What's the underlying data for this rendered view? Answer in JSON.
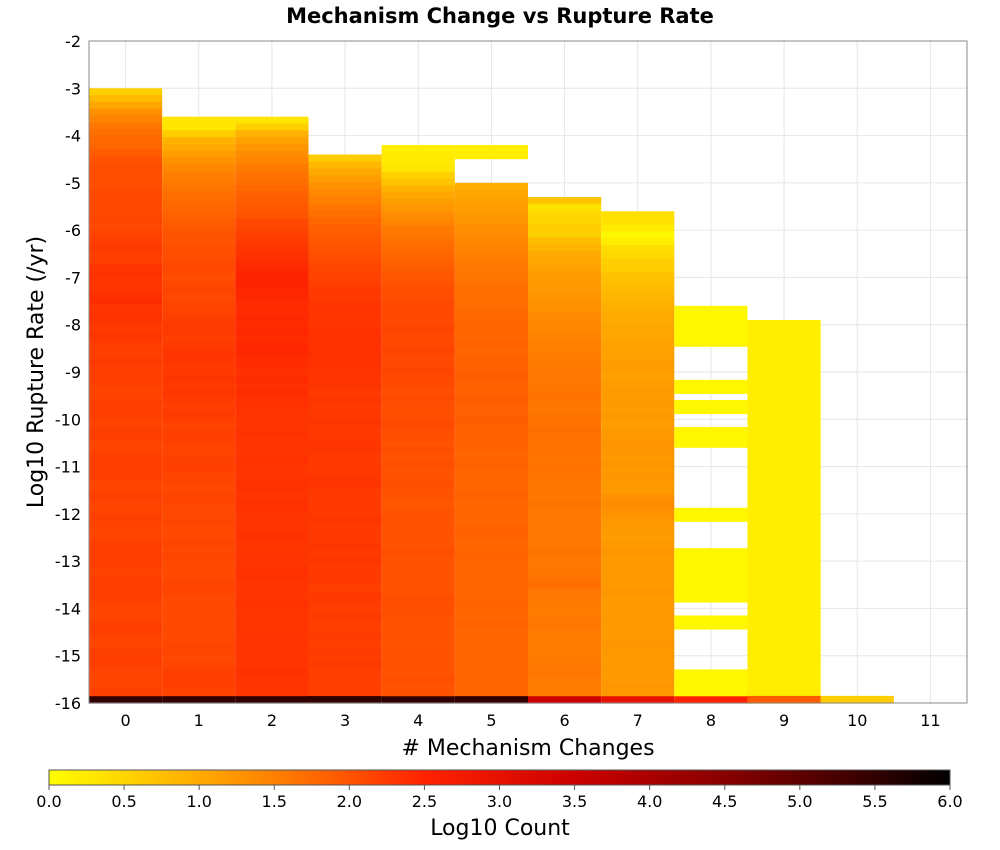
{
  "chart_data": {
    "type": "heatmap",
    "title": "Mechanism Change vs Rupture Rate",
    "xlabel": "# Mechanism Changes",
    "ylabel": "Log10 Rupture Rate (/yr)",
    "xlim": [
      -0.5,
      11.5
    ],
    "ylim": [
      -16,
      -2
    ],
    "x_ticks": [
      "0",
      "1",
      "2",
      "3",
      "4",
      "5",
      "6",
      "7",
      "8",
      "9",
      "10",
      "11"
    ],
    "y_ticks": [
      "-2",
      "-3",
      "-4",
      "-5",
      "-6",
      "-7",
      "-8",
      "-9",
      "-10",
      "-11",
      "-12",
      "-13",
      "-14",
      "-15",
      "-16"
    ],
    "bin_height": 0.2857,
    "grid": true,
    "colorscale": {
      "label": "Log10 Count",
      "min": 0.0,
      "max": 6.0,
      "ticks": [
        "0.0",
        "0.5",
        "1.0",
        "1.5",
        "2.0",
        "2.5",
        "3.0",
        "3.5",
        "4.0",
        "4.5",
        "5.0",
        "5.5",
        "6.0"
      ],
      "stops": [
        "#ffff00",
        "#ff9900",
        "#ff6600",
        "#ff2200",
        "#cc0000",
        "#880000",
        "#440000",
        "#000000"
      ]
    },
    "columns": [
      {
        "x": 0,
        "y_top": -3.0,
        "y_bottom": -16.0,
        "values": [
          0.55,
          0.8,
          1.05,
          1.3,
          1.45,
          1.6,
          1.7,
          1.75,
          1.8,
          1.9,
          2.0,
          2.05,
          2.05,
          2.05,
          2.05,
          2.1,
          2.1,
          2.1,
          2.1,
          2.15,
          2.1,
          2.15,
          2.2,
          2.25,
          2.2,
          2.2,
          2.3,
          2.35,
          2.3,
          2.3,
          2.35,
          2.4,
          2.3,
          2.35,
          2.3,
          2.25,
          2.3,
          2.25,
          2.2,
          2.2,
          2.25,
          2.2,
          2.2,
          2.2,
          2.15,
          2.15,
          2.2,
          2.2,
          2.2,
          2.15,
          2.2,
          2.2,
          2.15,
          2.15,
          2.2,
          2.2,
          2.2,
          2.2,
          2.15,
          2.15,
          2.2,
          2.15,
          2.15,
          2.2,
          2.15,
          2.15,
          2.15,
          2.2,
          2.2,
          2.2,
          2.2,
          2.15,
          2.2,
          2.2,
          2.2,
          2.2,
          2.15,
          2.15,
          2.15,
          2.2,
          2.2,
          2.15,
          2.15,
          2.2,
          2.2,
          2.2,
          2.15,
          2.15,
          2.15,
          2.2,
          5.5
        ]
      },
      {
        "x": 1,
        "y_top": -3.6,
        "y_bottom": -16.0,
        "values": [
          0.3,
          0.3,
          0.6,
          0.9,
          1.0,
          1.15,
          1.3,
          1.4,
          1.5,
          1.55,
          1.65,
          1.7,
          1.75,
          1.8,
          1.85,
          1.9,
          1.95,
          2.0,
          2.0,
          2.05,
          2.05,
          2.1,
          2.1,
          2.05,
          2.1,
          2.15,
          2.1,
          2.15,
          2.15,
          2.2,
          2.25,
          2.25,
          2.2,
          2.25,
          2.3,
          2.3,
          2.25,
          2.25,
          2.3,
          2.25,
          2.3,
          2.25,
          2.2,
          2.25,
          2.2,
          2.15,
          2.2,
          2.2,
          2.15,
          2.15,
          2.2,
          2.2,
          2.15,
          2.15,
          2.1,
          2.15,
          2.15,
          2.1,
          2.1,
          2.15,
          2.1,
          2.1,
          2.15,
          2.1,
          2.15,
          2.1,
          2.1,
          2.1,
          2.15,
          2.15,
          2.1,
          2.1,
          2.1,
          2.1,
          2.1,
          2.1,
          2.1,
          2.15,
          2.15,
          2.1,
          2.15,
          2.2,
          2.2,
          2.2,
          2.15,
          5.5
        ]
      },
      {
        "x": 2,
        "y_top": -3.6,
        "y_bottom": -16.0,
        "values": [
          0.3,
          0.55,
          0.9,
          1.1,
          1.25,
          1.35,
          1.45,
          1.55,
          1.65,
          1.7,
          1.8,
          1.85,
          1.9,
          1.95,
          2.0,
          2.1,
          2.15,
          2.2,
          2.25,
          2.3,
          2.35,
          2.4,
          2.45,
          2.5,
          2.5,
          2.45,
          2.45,
          2.4,
          2.4,
          2.45,
          2.4,
          2.45,
          2.4,
          2.45,
          2.45,
          2.4,
          2.4,
          2.35,
          2.4,
          2.35,
          2.4,
          2.35,
          2.35,
          2.3,
          2.3,
          2.3,
          2.35,
          2.3,
          2.3,
          2.3,
          2.35,
          2.3,
          2.3,
          2.35,
          2.35,
          2.3,
          2.35,
          2.35,
          2.3,
          2.3,
          2.3,
          2.35,
          2.3,
          2.3,
          2.3,
          2.3,
          2.35,
          2.35,
          2.3,
          2.3,
          2.3,
          2.35,
          2.3,
          2.3,
          2.3,
          2.3,
          2.3,
          2.3,
          2.3,
          2.3,
          2.3,
          2.35,
          2.3,
          2.3,
          2.3,
          5.5
        ]
      },
      {
        "x": 3,
        "y_top": -4.4,
        "y_bottom": -16.0,
        "values": [
          0.6,
          0.85,
          1.0,
          1.15,
          1.3,
          1.4,
          1.5,
          1.6,
          1.7,
          1.8,
          1.85,
          1.9,
          1.95,
          2.0,
          2.05,
          2.1,
          2.15,
          2.15,
          2.2,
          2.25,
          2.25,
          2.3,
          2.3,
          2.3,
          2.3,
          2.35,
          2.35,
          2.35,
          2.35,
          2.35,
          2.35,
          2.3,
          2.3,
          2.3,
          2.25,
          2.3,
          2.25,
          2.25,
          2.3,
          2.25,
          2.25,
          2.3,
          2.3,
          2.25,
          2.25,
          2.25,
          2.3,
          2.3,
          2.25,
          2.25,
          2.25,
          2.25,
          2.3,
          2.25,
          2.25,
          2.25,
          2.3,
          2.25,
          2.3,
          2.25,
          2.25,
          2.25,
          2.2,
          2.25,
          2.25,
          2.2,
          2.25,
          2.2,
          2.2,
          2.25,
          2.2,
          2.25,
          2.2,
          2.25,
          2.2,
          2.2,
          2.2,
          2.2,
          5.5
        ]
      },
      {
        "x": 4,
        "y_top": -4.2,
        "y_bottom": -16.0,
        "values": [
          0.2,
          0.25,
          0.25,
          0.3,
          0.55,
          0.7,
          0.9,
          1.05,
          1.15,
          1.25,
          1.35,
          1.45,
          1.55,
          1.6,
          1.7,
          1.75,
          1.8,
          1.85,
          1.9,
          1.95,
          2.0,
          2.05,
          2.05,
          2.1,
          2.1,
          2.1,
          2.1,
          2.15,
          2.1,
          2.1,
          2.15,
          2.1,
          2.1,
          2.15,
          2.1,
          2.1,
          2.05,
          2.1,
          2.05,
          2.05,
          2.05,
          2.1,
          2.05,
          2.05,
          2.0,
          2.05,
          2.0,
          2.05,
          2.0,
          2.0,
          2.05,
          2.0,
          2.0,
          1.95,
          2.0,
          2.0,
          2.0,
          2.0,
          2.0,
          2.0,
          2.05,
          2.0,
          2.0,
          2.0,
          2.0,
          2.0,
          2.0,
          2.05,
          2.05,
          2.05,
          2.0,
          2.0,
          2.0,
          2.0,
          2.0,
          2.0,
          2.0,
          2.0,
          2.0,
          2.05,
          2.0,
          2.0,
          5.5
        ]
      },
      {
        "x": 5,
        "y_top": -5.0,
        "y_bottom": -16.0,
        "values": [
          0.95,
          1.05,
          1.1,
          1.15,
          1.2,
          1.25,
          1.3,
          1.35,
          1.4,
          1.45,
          1.5,
          1.55,
          1.6,
          1.6,
          1.65,
          1.7,
          1.7,
          1.7,
          1.75,
          1.75,
          1.8,
          1.8,
          1.8,
          1.85,
          1.8,
          1.85,
          1.85,
          1.85,
          1.9,
          1.85,
          1.85,
          1.9,
          1.85,
          1.85,
          1.9,
          1.85,
          1.85,
          1.85,
          1.85,
          1.8,
          1.85,
          1.85,
          1.8,
          1.8,
          1.8,
          1.85,
          1.8,
          1.8,
          1.8,
          1.8,
          1.85,
          1.85,
          1.8,
          1.8,
          1.85,
          1.8,
          1.8,
          1.8,
          1.8,
          1.8,
          1.8,
          1.85,
          1.8,
          1.8,
          1.85,
          1.8,
          1.8,
          1.8,
          1.8,
          1.8,
          1.8,
          1.8,
          1.8,
          1.8,
          1.8,
          5.5
        ]
      },
      {
        "x": 6,
        "y_top": -5.3,
        "y_bottom": -16.0,
        "values": [
          0.7,
          0.35,
          0.45,
          0.5,
          0.6,
          0.55,
          0.8,
          0.9,
          1.0,
          1.05,
          1.1,
          1.15,
          1.2,
          1.2,
          1.25,
          1.3,
          1.3,
          1.35,
          1.4,
          1.4,
          1.45,
          1.5,
          1.5,
          1.55,
          1.55,
          1.6,
          1.6,
          1.6,
          1.65,
          1.65,
          1.65,
          1.6,
          1.65,
          1.65,
          1.7,
          1.65,
          1.65,
          1.65,
          1.65,
          1.65,
          1.65,
          1.65,
          1.6,
          1.65,
          1.6,
          1.65,
          1.6,
          1.6,
          1.6,
          1.6,
          1.6,
          1.6,
          1.65,
          1.6,
          1.6,
          1.6,
          1.65,
          1.7,
          1.6,
          1.6,
          1.55,
          1.55,
          1.6,
          1.6,
          1.55,
          1.55,
          1.55,
          1.55,
          1.55,
          1.6,
          1.6,
          1.55,
          1.55,
          1.55,
          3.5
        ]
      },
      {
        "x": 7,
        "y_top": -5.6,
        "y_bottom": -16.0,
        "values": [
          0.35,
          0.35,
          0.25,
          0.1,
          0.2,
          0.4,
          0.45,
          0.55,
          0.6,
          0.7,
          0.75,
          0.8,
          0.85,
          0.9,
          0.95,
          1.0,
          1.0,
          1.05,
          1.05,
          1.1,
          1.1,
          1.1,
          1.15,
          1.15,
          1.1,
          1.15,
          1.2,
          1.15,
          1.2,
          1.15,
          1.2,
          1.15,
          1.2,
          1.2,
          1.25,
          1.25,
          1.2,
          1.25,
          1.2,
          1.25,
          1.2,
          1.2,
          1.3,
          1.35,
          1.3,
          1.25,
          1.2,
          1.2,
          1.15,
          1.2,
          1.25,
          1.2,
          1.2,
          1.2,
          1.2,
          1.2,
          1.25,
          1.2,
          1.2,
          1.2,
          1.2,
          1.2,
          1.2,
          1.2,
          1.25,
          1.2,
          1.2,
          1.2,
          1.2,
          1.2,
          1.25,
          1.2,
          3.0
        ]
      },
      {
        "x": 8,
        "y_top": -7.6,
        "y_bottom": -16.0,
        "values": [
          0.1,
          0.1,
          0.1,
          0.1,
          0.1,
          0.1,
          0.1,
          0.1,
          0.1,
          0.1,
          0.1,
          0.1,
          0.1,
          0.1,
          0.1,
          0.1,
          0.1,
          0.1,
          0.1,
          0.1,
          0.1,
          0.1,
          0.1,
          0.1,
          0.1,
          0.1,
          0.1,
          0.1,
          0.1,
          0.1,
          0.1,
          0.1,
          0.1,
          0.1,
          0.1,
          0.1,
          0.1,
          0.1,
          0.1,
          0.1,
          0.1,
          0.1,
          0.1,
          0.1,
          0.1,
          0.1,
          0.1,
          0.1,
          0.1,
          0.1,
          0.1,
          0.1,
          0.1,
          0.1,
          0.1,
          0.1,
          0.1,
          0.1,
          2.5
        ]
      },
      {
        "x": 9,
        "y_top": -7.9,
        "y_bottom": -16.0,
        "values": [
          0.2
        ]
      },
      {
        "x": 9,
        "y_top": -15.85,
        "y_bottom": -16.0,
        "values": [
          1.9
        ]
      },
      {
        "x": 10,
        "y_top": -15.85,
        "y_bottom": -16.0,
        "values": [
          0.6
        ]
      }
    ],
    "col8_gaps_y": [
      [
        -8.4,
        -9.1
      ],
      [
        -9.4,
        -9.6
      ],
      [
        -9.9,
        -10.2
      ],
      [
        -10.6,
        -11.9
      ],
      [
        -12.2,
        -12.7
      ],
      [
        -13.9,
        -14.1
      ],
      [
        -14.5,
        -15.3
      ]
    ],
    "col4_top_extension": {
      "x_range": [
        4,
        5
      ],
      "y_top": -4.2,
      "y_bottom": -4.5,
      "value": 0.2
    }
  }
}
